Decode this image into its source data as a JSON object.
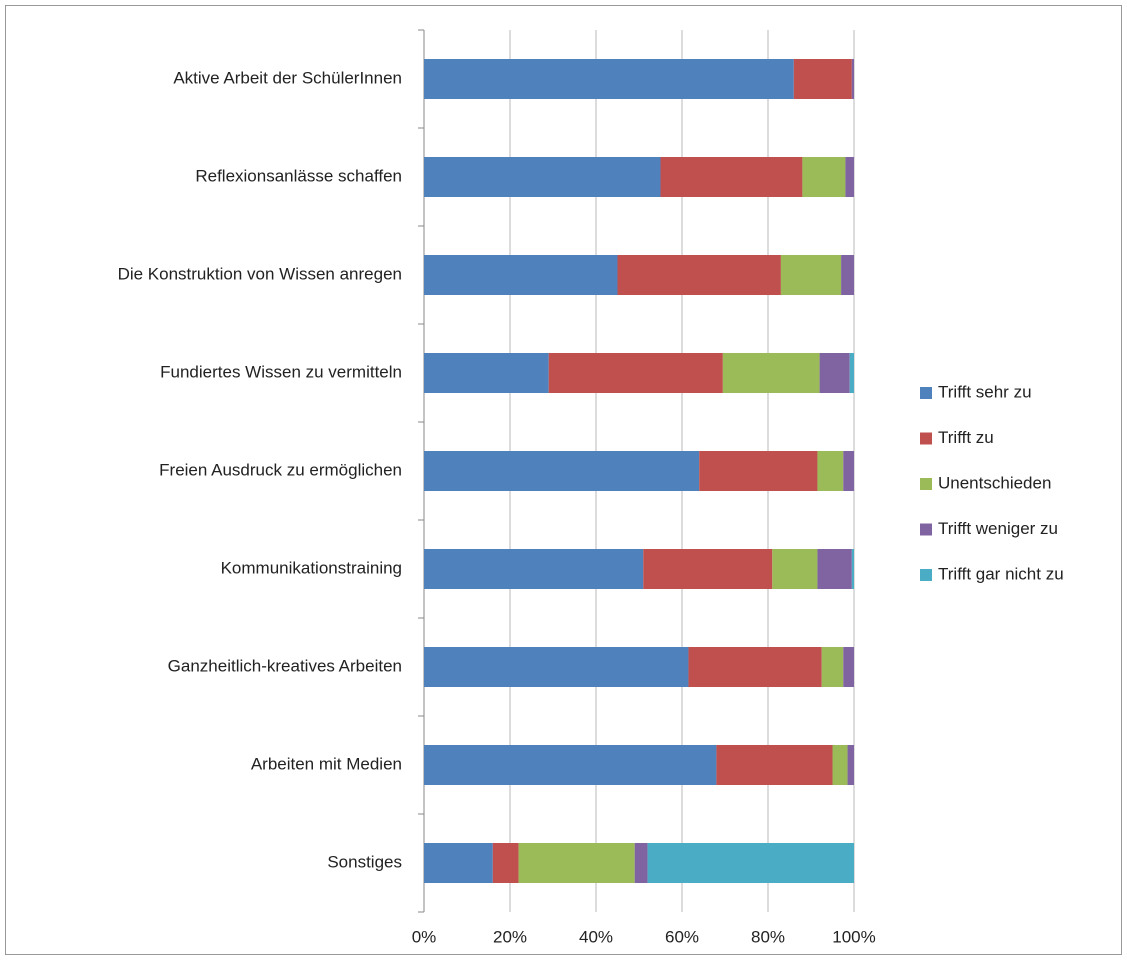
{
  "chart_data": {
    "type": "stacked_bar_horizontal",
    "categories": [
      "Aktive Arbeit der SchülerInnen",
      "Reflexionsanlässe schaffen",
      "Die Konstruktion von Wissen anregen",
      "Fundiertes Wissen zu vermitteln",
      "Freien Ausdruck zu ermöglichen",
      "Kommunikationstraining",
      "Ganzheitlich-kreatives Arbeiten",
      "Arbeiten mit Medien",
      "Sonstiges"
    ],
    "series": [
      {
        "name": "Trifft sehr zu",
        "color": "#4f81bd",
        "values": [
          86,
          55,
          45,
          29,
          64,
          51,
          61.5,
          68,
          16
        ]
      },
      {
        "name": "Trifft zu",
        "color": "#c0504d",
        "values": [
          13.5,
          33,
          38,
          40.5,
          27.5,
          30,
          31,
          27,
          6
        ]
      },
      {
        "name": "Unentschieden",
        "color": "#9bbb59",
        "values": [
          0,
          10,
          14,
          22.5,
          6,
          10.5,
          5,
          3.5,
          27
        ]
      },
      {
        "name": "Trifft weniger zu",
        "color": "#8064a2",
        "values": [
          0.5,
          2,
          3,
          7,
          2.5,
          8,
          2.5,
          1.5,
          3
        ]
      },
      {
        "name": "Trifft gar nicht zu",
        "color": "#4bacc6",
        "values": [
          0,
          0,
          0,
          1,
          0,
          0.5,
          0,
          0,
          48
        ]
      }
    ],
    "xlim": [
      0,
      100
    ],
    "xticks": [
      {
        "value": 0,
        "label": "0%"
      },
      {
        "value": 20,
        "label": "20%"
      },
      {
        "value": 40,
        "label": "40%"
      },
      {
        "value": 60,
        "label": "60%"
      },
      {
        "value": 80,
        "label": "80%"
      },
      {
        "value": 100,
        "label": "100%"
      }
    ],
    "grid": true,
    "legend": "right"
  }
}
